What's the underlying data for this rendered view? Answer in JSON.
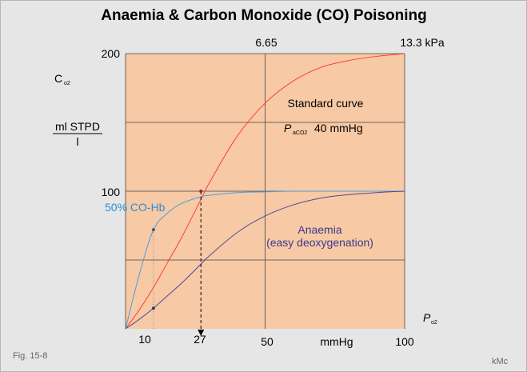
{
  "chart_data": {
    "type": "line",
    "title": "Anaemia & Carbon Monoxide (CO) Poisoning",
    "xlabel": "P",
    "xlabel_sub": "o2",
    "x_unit": "mmHg",
    "ylabel": "C",
    "ylabel_sub": "o2",
    "y_unit_top": "ml STPD",
    "y_unit_bottom": "l",
    "xlim": [
      0,
      100
    ],
    "ylim": [
      0,
      200
    ],
    "x_ticks": [
      "10",
      "27",
      "50",
      "mmHg",
      "100"
    ],
    "y_ticks": [
      "100",
      "200"
    ],
    "top_axis": {
      "tick_label": "6.65",
      "end_label": "13.3 kPa"
    },
    "grid": true,
    "series": [
      {
        "name": "Standard curve",
        "color": "#ff3c3c",
        "x": [
          0,
          5,
          10,
          15,
          20,
          27,
          30,
          40,
          50,
          60,
          70,
          80,
          90,
          100
        ],
        "y": [
          0,
          14,
          30,
          48,
          66,
          94,
          106,
          140,
          164,
          180,
          190,
          195,
          198,
          200
        ]
      },
      {
        "name": "50% CO-Hb",
        "color": "#4a9fe0",
        "x": [
          0,
          5,
          10,
          15,
          20,
          27,
          30,
          40,
          50,
          60,
          80,
          100
        ],
        "y": [
          0,
          40,
          72,
          84,
          91,
          96,
          97,
          99,
          99.5,
          100,
          100,
          100
        ]
      },
      {
        "name": "Anaemia",
        "color": "#4a4a9a",
        "x": [
          0,
          5,
          10,
          15,
          20,
          27,
          30,
          40,
          50,
          60,
          70,
          80,
          90,
          100
        ],
        "y": [
          0,
          7,
          15,
          24,
          33,
          47,
          53,
          70,
          82,
          90,
          95,
          97.5,
          99,
          100
        ]
      }
    ],
    "markers": [
      {
        "x": 27,
        "y": 100
      },
      {
        "x": 10,
        "y": 72
      },
      {
        "x": 10,
        "y": 15
      }
    ],
    "annotations": {
      "standard_curve": "Standard curve",
      "paco2_symbol": "P",
      "paco2_sub": "aCO2",
      "paco2_value": "40 mmHg",
      "co_hb": "50% CO-Hb",
      "anaemia_line1": "Anaemia",
      "anaemia_line2": "(easy deoxygenation)"
    }
  },
  "footer": {
    "fig": "Fig. 15-8",
    "author": "kMc"
  }
}
